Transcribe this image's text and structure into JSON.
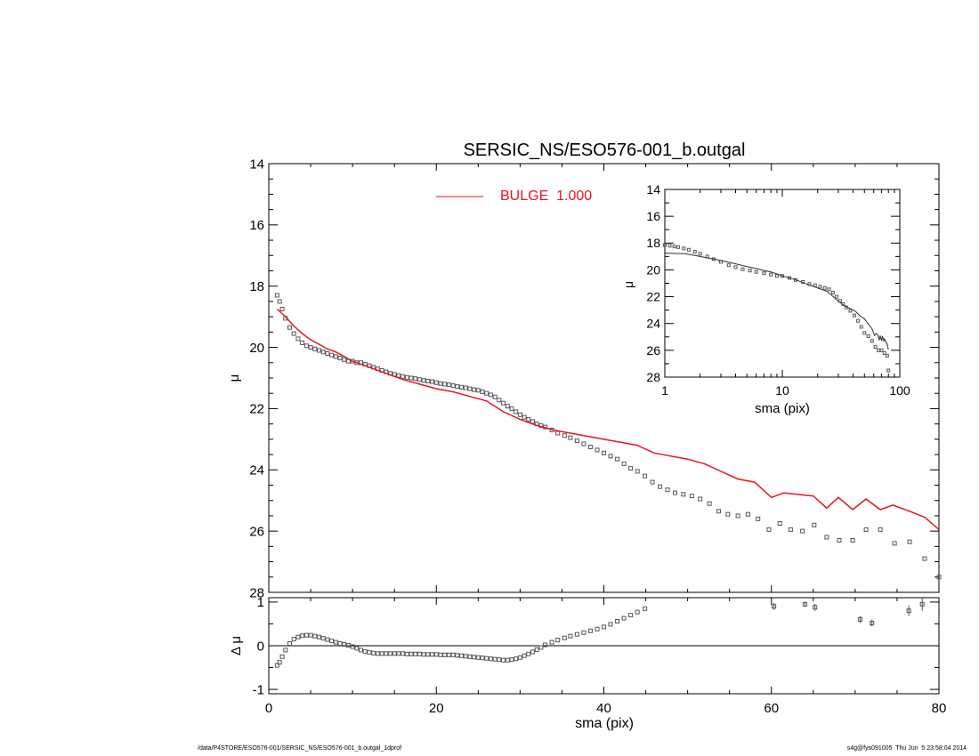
{
  "footer": {
    "path": "/data/P4STORE/ESO576-001/SERSIC_NS/ESO576-001_b.outgal_1dprof",
    "stamp": "s4g@fys091005  Thu Jun  5 23:58:04 2014"
  },
  "chart_data": [
    {
      "id": "main",
      "type": "scatter",
      "title": "SERSIC_NS/ESO576-001_b.outgal",
      "xlabel": "",
      "ylabel": "μ",
      "xlim": [
        0,
        80
      ],
      "ylim": [
        28,
        14
      ],
      "y_inverted": true,
      "x_ticks": [
        0,
        20,
        40,
        60,
        80
      ],
      "y_ticks": [
        14,
        16,
        18,
        20,
        22,
        24,
        26,
        28
      ],
      "legend": {
        "placement": "top-center",
        "entries": [
          {
            "label": "BULGE  1.000",
            "color": "#e8141c"
          }
        ]
      },
      "series": [
        {
          "name": "",
          "style": "open-squares",
          "color": "#555555",
          "x": [
            1.0,
            1.3,
            1.6,
            2.0,
            2.5,
            3.0,
            3.5,
            4.0,
            4.5,
            5.0,
            5.5,
            6.0,
            6.5,
            7.0,
            7.5,
            8.0,
            8.5,
            9.0,
            9.5,
            10.0,
            10.5,
            11,
            11.5,
            12,
            12.5,
            13,
            13.5,
            14,
            14.5,
            15,
            15.5,
            16,
            16.5,
            17,
            17.5,
            18,
            18.5,
            19,
            19.5,
            20,
            20.5,
            21,
            21.5,
            22,
            22.5,
            23,
            23.5,
            24,
            24.5,
            25,
            25.5,
            26,
            26.5,
            27,
            27.5,
            28,
            28.5,
            29,
            29.5,
            30,
            30.5,
            31,
            31.5,
            32,
            32.5,
            33,
            33.8,
            34.5,
            35.3,
            36,
            36.8,
            37.6,
            38.4,
            39.2,
            40,
            40.8,
            41.6,
            42.4,
            43.2,
            44,
            44.9,
            45.8,
            46.7,
            47.6,
            48.5,
            49.5,
            50.5,
            51.5,
            52.6,
            53.7,
            54.8,
            56,
            57.2,
            58.4,
            59.7,
            61,
            62.3,
            63.7,
            65.1,
            66.6,
            68.1,
            69.7,
            71.3,
            73,
            74.7,
            76.5,
            78.3,
            80
          ],
          "y": [
            18.3,
            18.5,
            18.75,
            19.05,
            19.35,
            19.55,
            19.72,
            19.85,
            19.95,
            20.0,
            20.05,
            20.1,
            20.15,
            20.2,
            20.25,
            20.3,
            20.35,
            20.4,
            20.45,
            20.45,
            20.5,
            20.5,
            20.55,
            20.6,
            20.65,
            20.7,
            20.75,
            20.8,
            20.85,
            20.88,
            20.92,
            20.95,
            20.98,
            21.0,
            21.02,
            21.05,
            21.08,
            21.1,
            21.12,
            21.15,
            21.18,
            21.2,
            21.22,
            21.25,
            21.28,
            21.3,
            21.32,
            21.35,
            21.38,
            21.4,
            21.45,
            21.5,
            21.55,
            21.62,
            21.72,
            21.82,
            21.92,
            22.0,
            22.1,
            22.2,
            22.28,
            22.35,
            22.42,
            22.5,
            22.55,
            22.6,
            22.7,
            22.8,
            22.88,
            22.95,
            23.05,
            23.15,
            23.25,
            23.35,
            23.45,
            23.55,
            23.65,
            23.8,
            23.95,
            24.05,
            24.2,
            24.4,
            24.55,
            24.65,
            24.75,
            24.8,
            24.85,
            24.95,
            25.1,
            25.35,
            25.45,
            25.5,
            25.45,
            25.6,
            25.95,
            25.75,
            25.95,
            26.0,
            25.8,
            26.2,
            26.3,
            26.3,
            25.95,
            25.95,
            26.4,
            26.35,
            26.9,
            27.5
          ]
        },
        {
          "name": "BULGE  1.000",
          "style": "line",
          "color": "#e8141c",
          "x": [
            1.0,
            2,
            3,
            4,
            5,
            6,
            7,
            8,
            9,
            10,
            12,
            14,
            16,
            18,
            20,
            22,
            24,
            26,
            28,
            30,
            32,
            34,
            36,
            38,
            40,
            42,
            44,
            46,
            48,
            50,
            52,
            54,
            56,
            58,
            60,
            61.5,
            63,
            65,
            66.6,
            68,
            69.7,
            71.3,
            73,
            74.5,
            76.5,
            78.3,
            80
          ],
          "y": [
            18.75,
            19.0,
            19.3,
            19.55,
            19.75,
            19.9,
            20.05,
            20.15,
            20.3,
            20.45,
            20.65,
            20.85,
            21.05,
            21.2,
            21.35,
            21.45,
            21.6,
            21.75,
            22.1,
            22.35,
            22.55,
            22.7,
            22.8,
            22.9,
            23.0,
            23.1,
            23.2,
            23.45,
            23.55,
            23.65,
            23.8,
            24.05,
            24.3,
            24.4,
            24.9,
            24.75,
            24.8,
            24.85,
            25.25,
            24.9,
            25.3,
            24.95,
            25.3,
            25.15,
            25.35,
            25.55,
            25.95
          ]
        }
      ]
    },
    {
      "id": "residual",
      "type": "scatter",
      "xlabel": "sma (pix)",
      "ylabel": "Δ μ",
      "xlim": [
        0,
        80
      ],
      "ylim": [
        -1.1,
        1.1
      ],
      "x_ticks": [
        0,
        20,
        40,
        60,
        80
      ],
      "y_ticks": [
        -1,
        0,
        1
      ],
      "zero_line": true,
      "series": [
        {
          "name": "",
          "style": "open-squares",
          "color": "#555555",
          "x": [
            1.0,
            1.3,
            1.6,
            2.0,
            2.5,
            3.0,
            3.5,
            4.0,
            4.5,
            5.0,
            5.5,
            6.0,
            6.5,
            7.0,
            7.5,
            8.0,
            8.5,
            9.0,
            9.5,
            10.0,
            10.5,
            11,
            11.5,
            12,
            12.5,
            13,
            13.5,
            14,
            14.5,
            15,
            15.5,
            16,
            16.5,
            17,
            17.5,
            18,
            18.5,
            19,
            19.5,
            20,
            20.5,
            21,
            21.5,
            22,
            22.5,
            23,
            23.5,
            24,
            24.5,
            25,
            25.5,
            26,
            26.5,
            27,
            27.5,
            28,
            28.5,
            29,
            29.5,
            30,
            30.5,
            31,
            31.5,
            32,
            32.5,
            33,
            33.8,
            34.5,
            35.3,
            36,
            36.8,
            37.6,
            38.4,
            39.2,
            40,
            40.8,
            41.6,
            42.4,
            43.2,
            44,
            44.9,
            60.3,
            64.0,
            65.2,
            70.6,
            72.0,
            76.4,
            78.0
          ],
          "y": [
            -0.45,
            -0.38,
            -0.25,
            -0.1,
            0.05,
            0.15,
            0.2,
            0.23,
            0.24,
            0.24,
            0.22,
            0.2,
            0.17,
            0.14,
            0.11,
            0.08,
            0.05,
            0.03,
            0.01,
            -0.02,
            -0.06,
            -0.1,
            -0.13,
            -0.15,
            -0.17,
            -0.18,
            -0.18,
            -0.18,
            -0.18,
            -0.18,
            -0.18,
            -0.18,
            -0.19,
            -0.19,
            -0.19,
            -0.19,
            -0.2,
            -0.2,
            -0.2,
            -0.2,
            -0.21,
            -0.21,
            -0.21,
            -0.21,
            -0.22,
            -0.23,
            -0.24,
            -0.25,
            -0.26,
            -0.27,
            -0.28,
            -0.29,
            -0.3,
            -0.31,
            -0.32,
            -0.33,
            -0.33,
            -0.32,
            -0.3,
            -0.27,
            -0.23,
            -0.19,
            -0.14,
            -0.09,
            -0.04,
            0.02,
            0.08,
            0.13,
            0.18,
            0.22,
            0.26,
            0.3,
            0.34,
            0.38,
            0.43,
            0.49,
            0.56,
            0.63,
            0.7,
            0.77,
            0.85,
            0.9,
            0.95,
            0.88,
            0.6,
            0.52,
            0.8,
            0.95
          ],
          "err": [
            0,
            0,
            0,
            0,
            0,
            0,
            0,
            0,
            0,
            0,
            0,
            0,
            0,
            0,
            0,
            0,
            0,
            0,
            0,
            0,
            0,
            0,
            0,
            0,
            0,
            0,
            0,
            0,
            0,
            0,
            0,
            0,
            0,
            0,
            0,
            0,
            0,
            0,
            0,
            0,
            0,
            0,
            0,
            0,
            0,
            0,
            0,
            0,
            0,
            0,
            0,
            0,
            0,
            0,
            0,
            0,
            0,
            0,
            0,
            0,
            0,
            0,
            0,
            0,
            0,
            0,
            0,
            0,
            0,
            0,
            0,
            0,
            0,
            0,
            0,
            0,
            0,
            0,
            0,
            0,
            0,
            0.08,
            0.06,
            0.08,
            0.08,
            0.08,
            0.12,
            0.15
          ]
        }
      ]
    },
    {
      "id": "inset",
      "type": "scatter",
      "xlabel": "sma (pix)",
      "ylabel": "μ",
      "xscale": "log",
      "xlim": [
        1,
        100
      ],
      "ylim": [
        28,
        14
      ],
      "y_inverted": true,
      "x_ticks": [
        1,
        10,
        100
      ],
      "y_ticks": [
        14,
        16,
        18,
        20,
        22,
        24,
        26,
        28
      ],
      "series": [
        {
          "name": "",
          "style": "open-squares",
          "color": "#555555",
          "x": [
            1.0,
            1.1,
            1.2,
            1.3,
            1.45,
            1.6,
            1.8,
            2.0,
            2.3,
            2.6,
            3.0,
            3.5,
            4,
            4.6,
            5.3,
            6,
            7,
            8,
            9,
            10,
            11.5,
            13,
            15,
            17,
            19,
            21,
            23,
            25,
            27,
            29,
            31,
            33,
            35,
            38,
            41,
            44,
            47,
            50,
            54,
            58,
            62,
            66,
            70,
            74,
            78,
            80
          ],
          "y": [
            18.15,
            18.2,
            18.25,
            18.3,
            18.4,
            18.5,
            18.65,
            18.8,
            19.0,
            19.2,
            19.4,
            19.65,
            19.8,
            19.95,
            20.05,
            20.15,
            20.25,
            20.35,
            20.45,
            20.45,
            20.6,
            20.75,
            20.9,
            21.05,
            21.15,
            21.25,
            21.35,
            21.45,
            21.7,
            22.0,
            22.3,
            22.55,
            22.8,
            23.05,
            23.4,
            23.8,
            24.25,
            24.7,
            24.95,
            25.3,
            25.75,
            26.0,
            26.0,
            26.2,
            26.4,
            27.5
          ]
        },
        {
          "name": "",
          "style": "line",
          "color": "#3a2a2a",
          "x": [
            1.0,
            1.5,
            2,
            3,
            4,
            5,
            6,
            7,
            8,
            9,
            10,
            12,
            14,
            16,
            18,
            20,
            24,
            28,
            30,
            34,
            38,
            42,
            46,
            50,
            54,
            58,
            61,
            63,
            65,
            67,
            68,
            70,
            71,
            73,
            74,
            76,
            78,
            80
          ],
          "y": [
            18.75,
            18.8,
            19.0,
            19.3,
            19.55,
            19.75,
            19.9,
            20.05,
            20.15,
            20.3,
            20.45,
            20.65,
            20.85,
            21.05,
            21.2,
            21.35,
            21.6,
            22.1,
            22.35,
            22.7,
            22.9,
            23.1,
            23.45,
            23.65,
            24.05,
            24.4,
            24.9,
            24.75,
            24.85,
            25.25,
            24.9,
            25.3,
            24.95,
            25.3,
            25.15,
            25.35,
            25.55,
            25.95
          ]
        }
      ]
    }
  ]
}
